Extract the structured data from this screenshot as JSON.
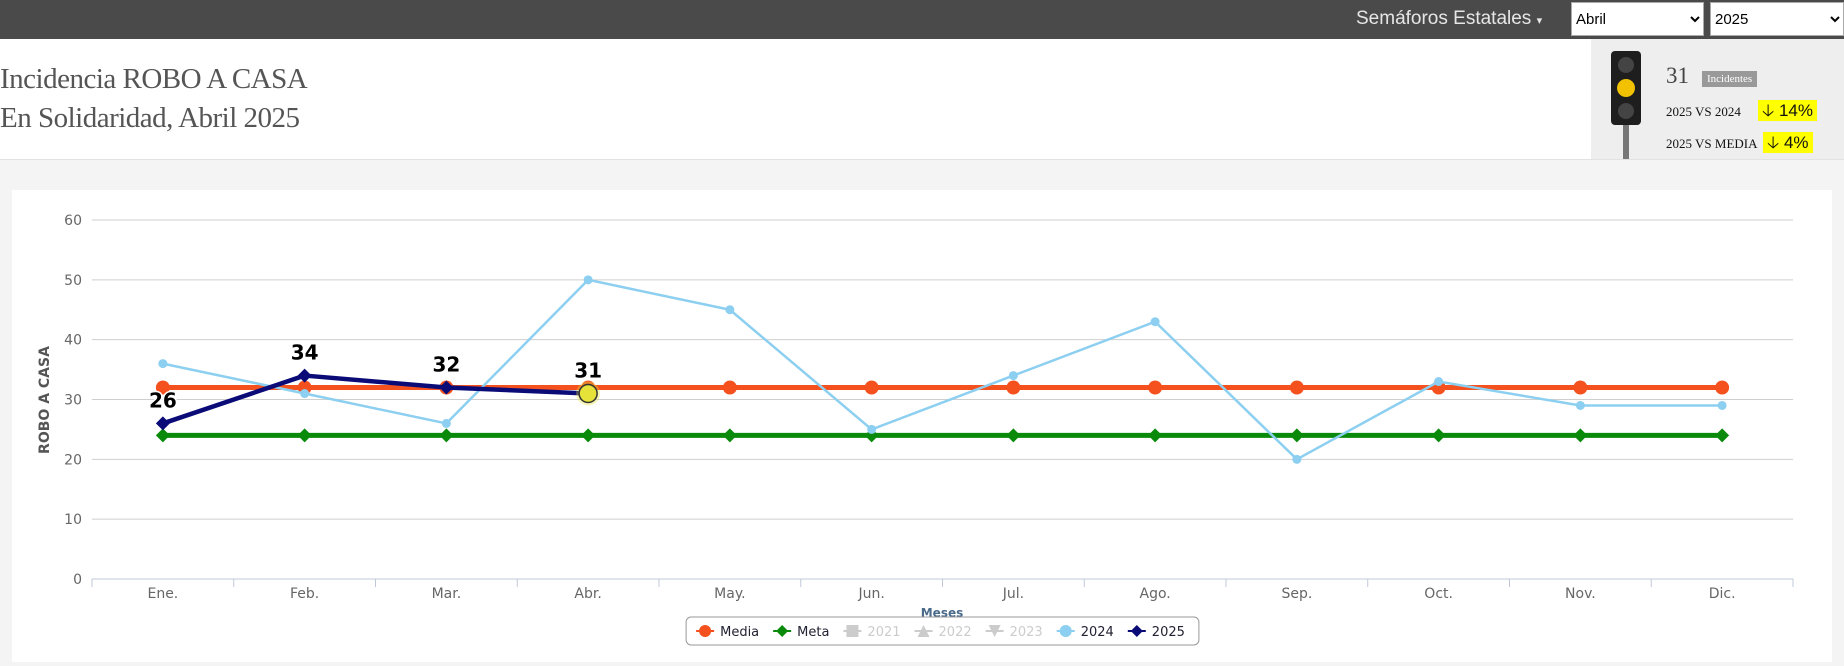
{
  "top_bar": {
    "menu": "Semáforos Estatales",
    "month": "Abril",
    "year": "2025"
  },
  "header": {
    "title": "Incidencia ROBO A CASA",
    "subtitle": "En Solidaridad, Abril 2025"
  },
  "summary": {
    "count": "31",
    "badge": "Incidentes",
    "comparisons": [
      {
        "label": "2025 VS 2024",
        "value": "14%"
      },
      {
        "label": "2025 VS MEDIA",
        "value": "4%"
      }
    ]
  },
  "chart_data": {
    "type": "line",
    "y_label": "ROBO A CASA",
    "x_label": "Meses",
    "categories": [
      "Ene.",
      "Feb.",
      "Mar.",
      "Abr.",
      "May.",
      "Jun.",
      "Jul.",
      "Ago.",
      "Sep.",
      "Oct.",
      "Nov.",
      "Dic."
    ],
    "ylim": [
      0,
      60
    ],
    "yticks": [
      0,
      10,
      20,
      30,
      40,
      50,
      60
    ],
    "grid": true,
    "legend": "bottom",
    "series": [
      {
        "name": "Media",
        "color": "#f4511e",
        "marker": "circle",
        "values": [
          32,
          32,
          32,
          32,
          32,
          32,
          32,
          32,
          32,
          32,
          32,
          32
        ]
      },
      {
        "name": "Meta",
        "color": "#0a8a0a",
        "marker": "diamond",
        "values": [
          24,
          24,
          24,
          24,
          24,
          24,
          24,
          24,
          24,
          24,
          24,
          24
        ]
      },
      {
        "name": "2021",
        "color": "#cccccc",
        "marker": "square",
        "visible": false
      },
      {
        "name": "2022",
        "color": "#cccccc",
        "marker": "triangle",
        "visible": false
      },
      {
        "name": "2023",
        "color": "#cccccc",
        "marker": "triangle-down",
        "visible": false
      },
      {
        "name": "2024",
        "color": "#8ccff0",
        "marker": "circle",
        "values": [
          36,
          31,
          26,
          50,
          45,
          25,
          34,
          43,
          20,
          33,
          29,
          29
        ]
      },
      {
        "name": "2025",
        "color": "#0b0b78",
        "marker": "diamond",
        "data_labels": true,
        "highlight_color": "#e6e23a",
        "values": [
          26,
          34,
          32,
          31,
          null,
          null,
          null,
          null,
          null,
          null,
          null,
          null
        ]
      }
    ]
  }
}
